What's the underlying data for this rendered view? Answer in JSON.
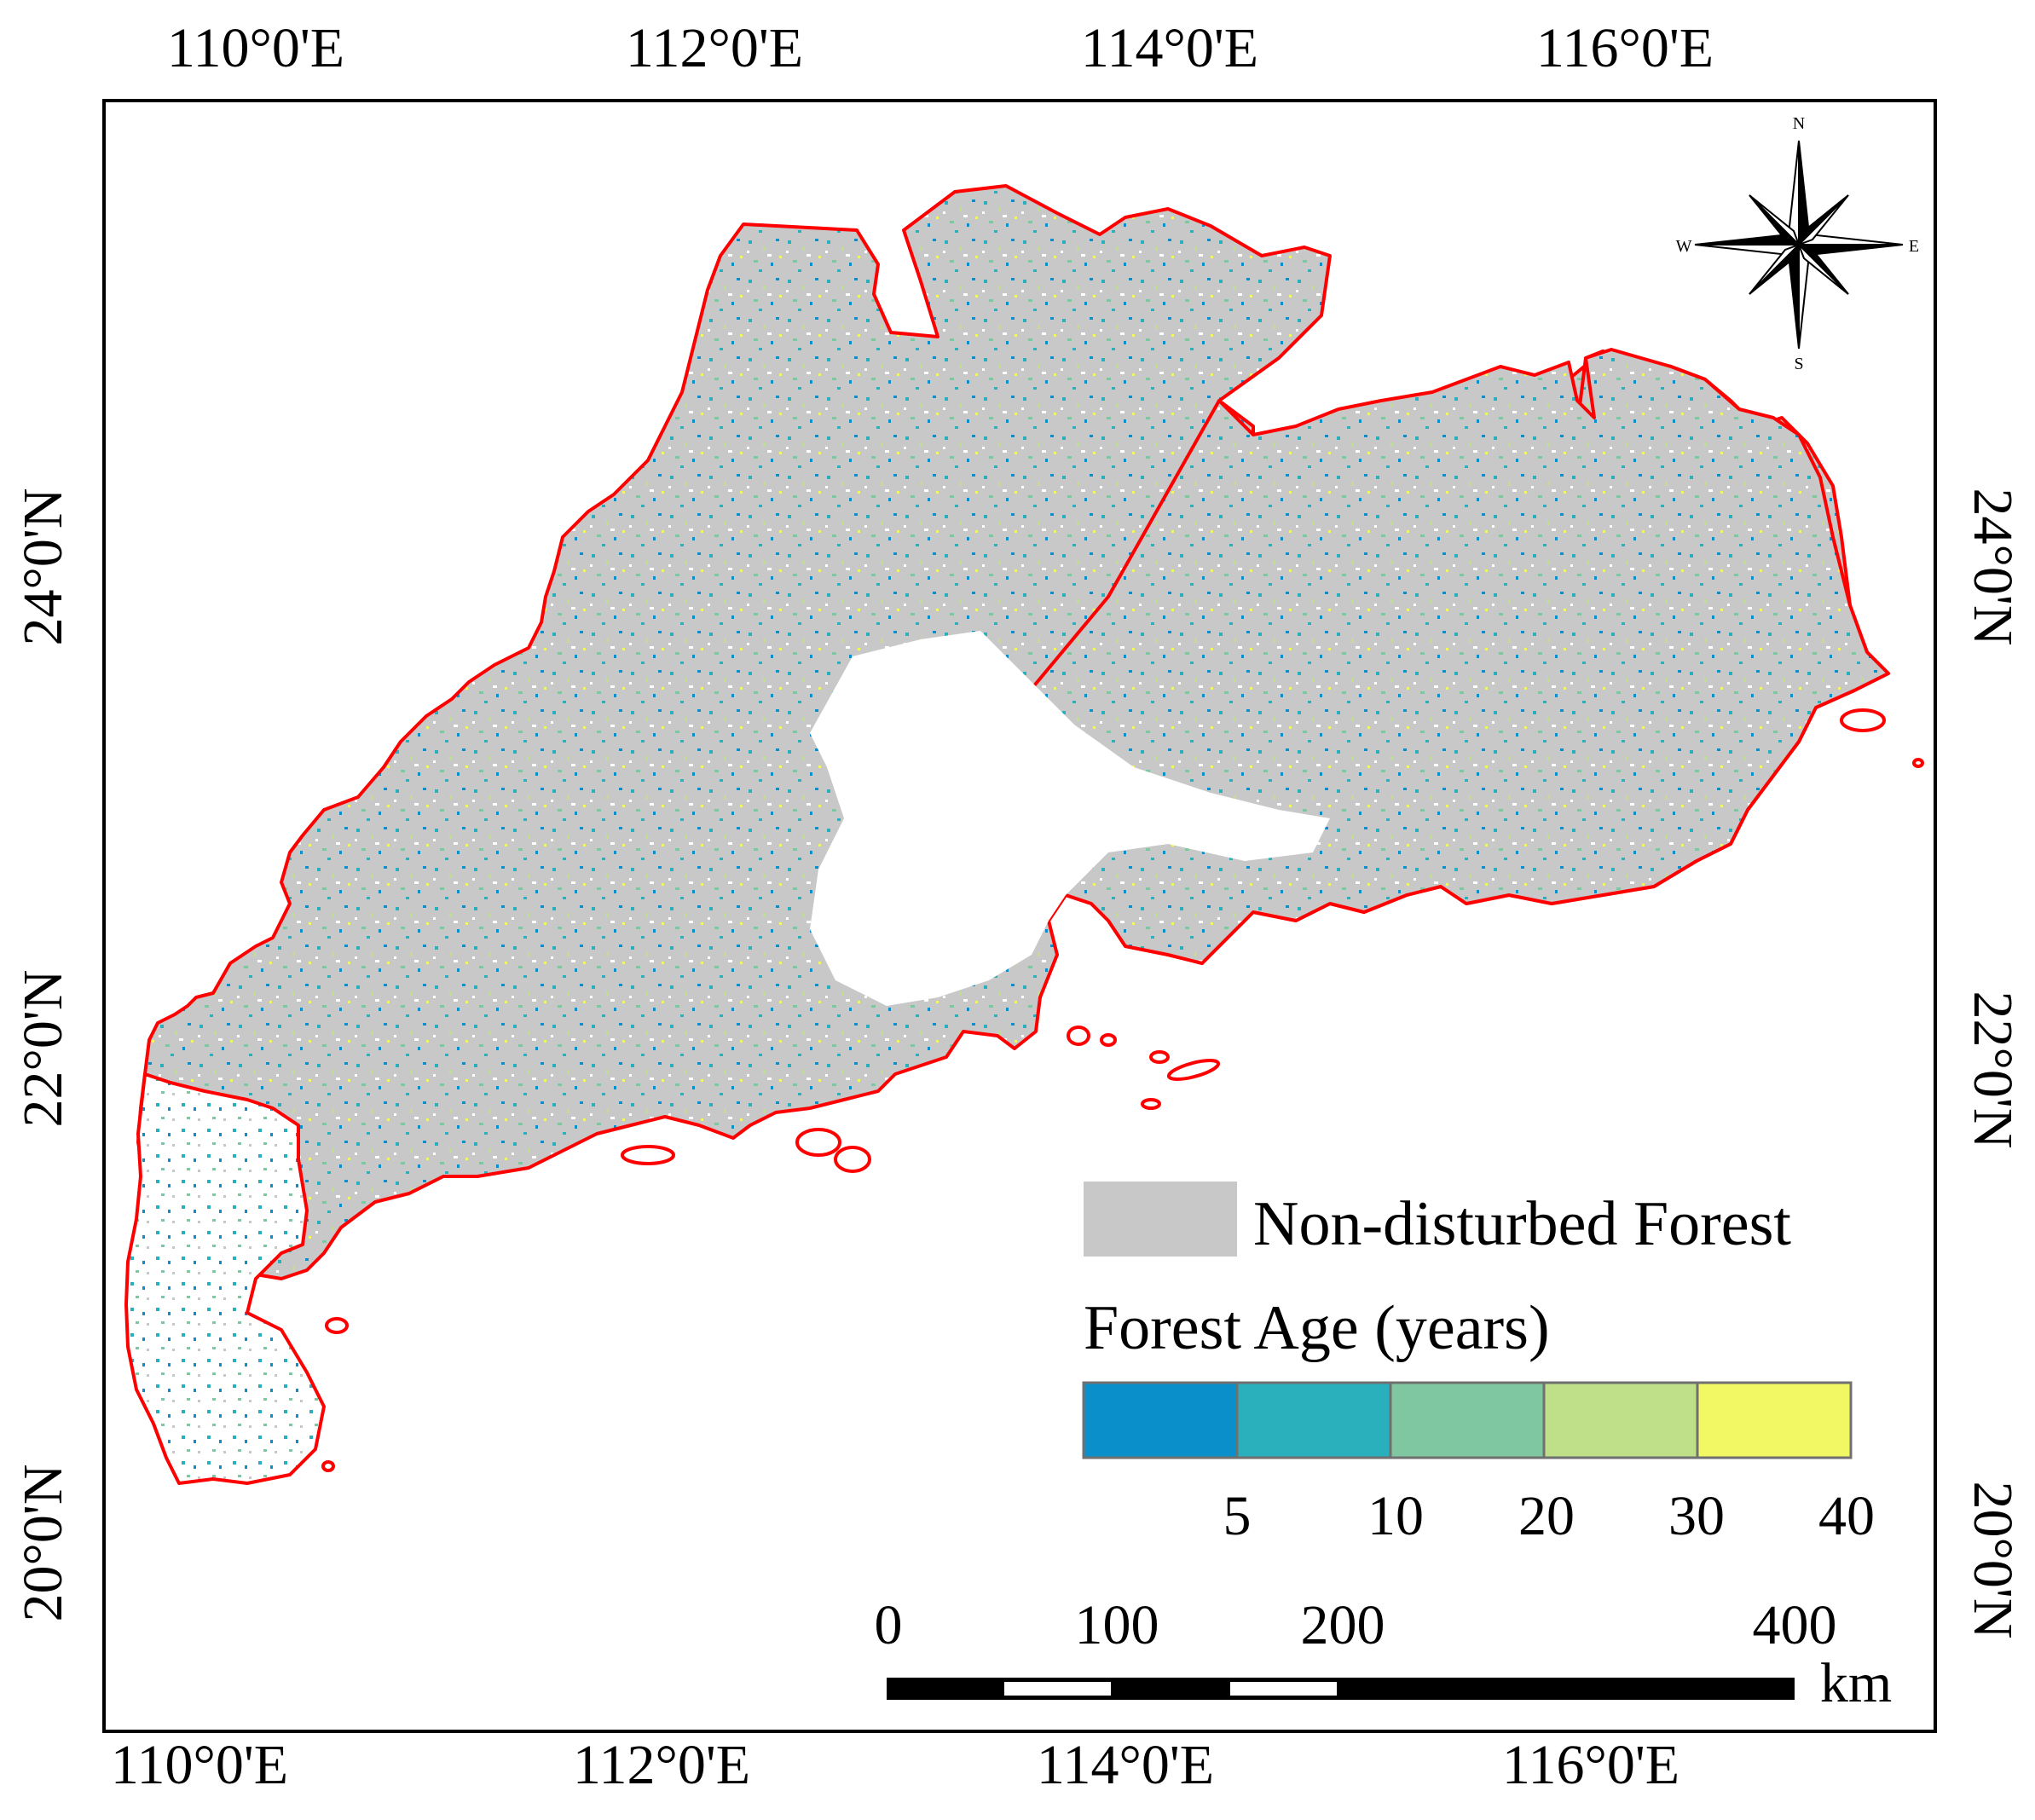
{
  "map": {
    "top_axis_labels": [
      "110°0'E",
      "112°0'E",
      "114°0'E",
      "116°0'E"
    ],
    "bottom_axis_labels": [
      "110°0'E",
      "112°0'E",
      "114°0'E",
      "116°0'E"
    ],
    "left_axis_labels": [
      "24°0'N",
      "22°0'N",
      "20°0'N"
    ],
    "right_axis_labels": [
      "24°0'N",
      "22°0'N",
      "20°0'N"
    ]
  },
  "compass": {
    "north": "N",
    "south": "S",
    "east": "E",
    "west": "W"
  },
  "legend": {
    "non_disturbed_label": "Non-disturbed Forest",
    "non_disturbed_color": "#c8c8c8",
    "age_title": "Forest Age (years)",
    "age_classes": [
      {
        "color": "#0a8fcb"
      },
      {
        "color": "#2aafbd"
      },
      {
        "color": "#7fc7a1"
      },
      {
        "color": "#bfdf88"
      },
      {
        "color": "#f2f764"
      }
    ],
    "age_ticks": [
      "5",
      "10",
      "20",
      "30",
      "40"
    ]
  },
  "scale_bar": {
    "labels": [
      "0",
      "100",
      "200",
      "400"
    ],
    "unit": "km"
  },
  "boundary_color": "#ff0000"
}
